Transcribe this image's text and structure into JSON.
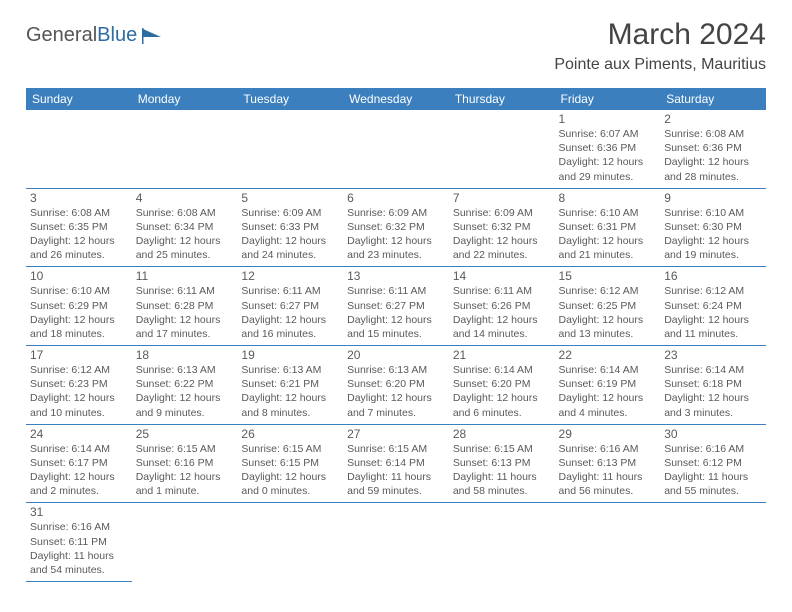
{
  "logo": {
    "text1": "General",
    "text2": "Blue"
  },
  "title": "March 2024",
  "location": "Pointe aux Piments, Mauritius",
  "colors": {
    "header_bg": "#3b7fbf",
    "header_text": "#ffffff",
    "border": "#3b7fbf",
    "body_text": "#5a5a5a",
    "logo_accent": "#2d6ca2"
  },
  "weekdays": [
    "Sunday",
    "Monday",
    "Tuesday",
    "Wednesday",
    "Thursday",
    "Friday",
    "Saturday"
  ],
  "calendar": {
    "first_weekday_index": 5,
    "days": [
      {
        "n": 1,
        "sunrise": "6:07 AM",
        "sunset": "6:36 PM",
        "daylight": "12 hours and 29 minutes."
      },
      {
        "n": 2,
        "sunrise": "6:08 AM",
        "sunset": "6:36 PM",
        "daylight": "12 hours and 28 minutes."
      },
      {
        "n": 3,
        "sunrise": "6:08 AM",
        "sunset": "6:35 PM",
        "daylight": "12 hours and 26 minutes."
      },
      {
        "n": 4,
        "sunrise": "6:08 AM",
        "sunset": "6:34 PM",
        "daylight": "12 hours and 25 minutes."
      },
      {
        "n": 5,
        "sunrise": "6:09 AM",
        "sunset": "6:33 PM",
        "daylight": "12 hours and 24 minutes."
      },
      {
        "n": 6,
        "sunrise": "6:09 AM",
        "sunset": "6:32 PM",
        "daylight": "12 hours and 23 minutes."
      },
      {
        "n": 7,
        "sunrise": "6:09 AM",
        "sunset": "6:32 PM",
        "daylight": "12 hours and 22 minutes."
      },
      {
        "n": 8,
        "sunrise": "6:10 AM",
        "sunset": "6:31 PM",
        "daylight": "12 hours and 21 minutes."
      },
      {
        "n": 9,
        "sunrise": "6:10 AM",
        "sunset": "6:30 PM",
        "daylight": "12 hours and 19 minutes."
      },
      {
        "n": 10,
        "sunrise": "6:10 AM",
        "sunset": "6:29 PM",
        "daylight": "12 hours and 18 minutes."
      },
      {
        "n": 11,
        "sunrise": "6:11 AM",
        "sunset": "6:28 PM",
        "daylight": "12 hours and 17 minutes."
      },
      {
        "n": 12,
        "sunrise": "6:11 AM",
        "sunset": "6:27 PM",
        "daylight": "12 hours and 16 minutes."
      },
      {
        "n": 13,
        "sunrise": "6:11 AM",
        "sunset": "6:27 PM",
        "daylight": "12 hours and 15 minutes."
      },
      {
        "n": 14,
        "sunrise": "6:11 AM",
        "sunset": "6:26 PM",
        "daylight": "12 hours and 14 minutes."
      },
      {
        "n": 15,
        "sunrise": "6:12 AM",
        "sunset": "6:25 PM",
        "daylight": "12 hours and 13 minutes."
      },
      {
        "n": 16,
        "sunrise": "6:12 AM",
        "sunset": "6:24 PM",
        "daylight": "12 hours and 11 minutes."
      },
      {
        "n": 17,
        "sunrise": "6:12 AM",
        "sunset": "6:23 PM",
        "daylight": "12 hours and 10 minutes."
      },
      {
        "n": 18,
        "sunrise": "6:13 AM",
        "sunset": "6:22 PM",
        "daylight": "12 hours and 9 minutes."
      },
      {
        "n": 19,
        "sunrise": "6:13 AM",
        "sunset": "6:21 PM",
        "daylight": "12 hours and 8 minutes."
      },
      {
        "n": 20,
        "sunrise": "6:13 AM",
        "sunset": "6:20 PM",
        "daylight": "12 hours and 7 minutes."
      },
      {
        "n": 21,
        "sunrise": "6:14 AM",
        "sunset": "6:20 PM",
        "daylight": "12 hours and 6 minutes."
      },
      {
        "n": 22,
        "sunrise": "6:14 AM",
        "sunset": "6:19 PM",
        "daylight": "12 hours and 4 minutes."
      },
      {
        "n": 23,
        "sunrise": "6:14 AM",
        "sunset": "6:18 PM",
        "daylight": "12 hours and 3 minutes."
      },
      {
        "n": 24,
        "sunrise": "6:14 AM",
        "sunset": "6:17 PM",
        "daylight": "12 hours and 2 minutes."
      },
      {
        "n": 25,
        "sunrise": "6:15 AM",
        "sunset": "6:16 PM",
        "daylight": "12 hours and 1 minute."
      },
      {
        "n": 26,
        "sunrise": "6:15 AM",
        "sunset": "6:15 PM",
        "daylight": "12 hours and 0 minutes."
      },
      {
        "n": 27,
        "sunrise": "6:15 AM",
        "sunset": "6:14 PM",
        "daylight": "11 hours and 59 minutes."
      },
      {
        "n": 28,
        "sunrise": "6:15 AM",
        "sunset": "6:13 PM",
        "daylight": "11 hours and 58 minutes."
      },
      {
        "n": 29,
        "sunrise": "6:16 AM",
        "sunset": "6:13 PM",
        "daylight": "11 hours and 56 minutes."
      },
      {
        "n": 30,
        "sunrise": "6:16 AM",
        "sunset": "6:12 PM",
        "daylight": "11 hours and 55 minutes."
      },
      {
        "n": 31,
        "sunrise": "6:16 AM",
        "sunset": "6:11 PM",
        "daylight": "11 hours and 54 minutes."
      }
    ]
  },
  "labels": {
    "sunrise": "Sunrise:",
    "sunset": "Sunset:",
    "daylight": "Daylight:"
  }
}
